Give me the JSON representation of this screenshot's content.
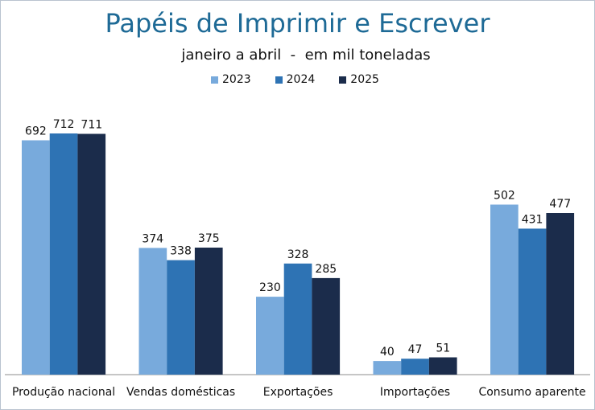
{
  "chart_data": {
    "type": "bar",
    "title": "Papéis de Imprimir e Escrever",
    "subtitle": "janeiro a abril  -  em mil toneladas",
    "categories": [
      "Produção nacional",
      "Vendas domésticas",
      "Exportações",
      "Importações",
      "Consumo aparente"
    ],
    "series": [
      {
        "name": "2023",
        "color": "#78aadc",
        "values": [
          692,
          374,
          230,
          40,
          502
        ]
      },
      {
        "name": "2024",
        "color": "#2e73b4",
        "values": [
          712,
          338,
          328,
          47,
          431
        ]
      },
      {
        "name": "2025",
        "color": "#1b2c4b",
        "values": [
          711,
          375,
          285,
          51,
          477
        ]
      }
    ],
    "ylim": [
      0,
      800
    ],
    "xlabel": "",
    "ylabel": "",
    "grid": false,
    "legend": "top-center"
  }
}
